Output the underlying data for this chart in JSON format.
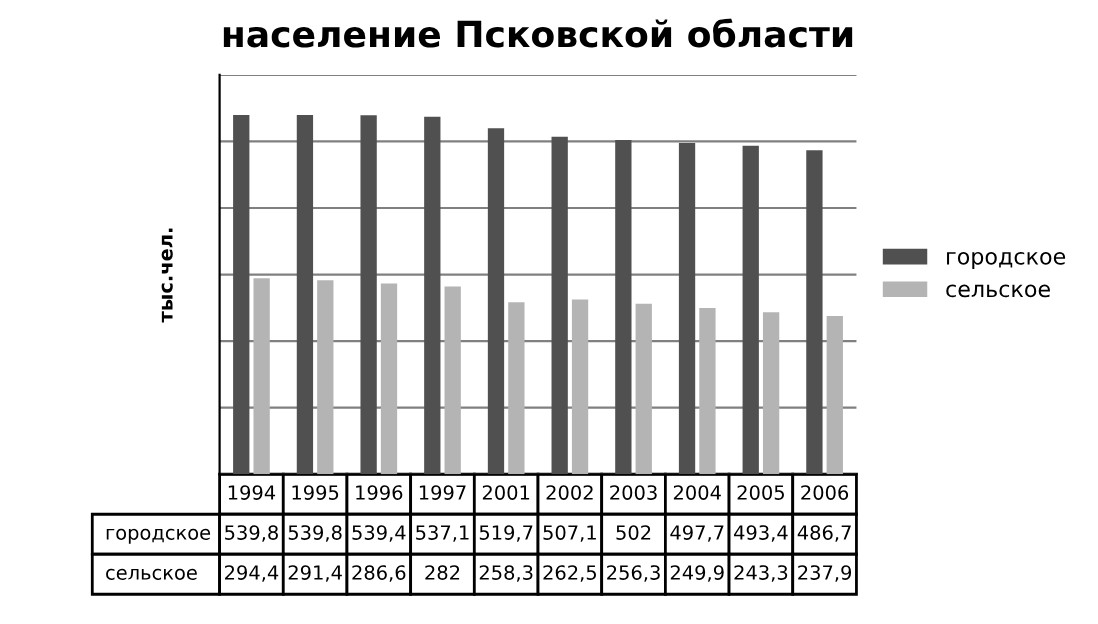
{
  "chart_data": {
    "type": "bar",
    "title": "население Псковской области",
    "ylabel": "тыс.чел.",
    "categories": [
      "1994",
      "1995",
      "1996",
      "1997",
      "2001",
      "2002",
      "2003",
      "2004",
      "2005",
      "2006"
    ],
    "series": [
      {
        "name": "городское",
        "color": "#505050",
        "values": [
          539.8,
          539.8,
          539.4,
          537.1,
          519.7,
          507.1,
          502,
          497.7,
          493.4,
          486.7
        ],
        "value_labels": [
          "539,8",
          "539,8",
          "539,4",
          "537,1",
          "519,7",
          "507,1",
          "502",
          "497,7",
          "493,4",
          "486,7"
        ]
      },
      {
        "name": "сельское",
        "color": "#b4b4b4",
        "values": [
          294.4,
          291.4,
          286.6,
          282,
          258.3,
          262.5,
          256.3,
          249.9,
          243.3,
          237.9
        ],
        "value_labels": [
          "294,4",
          "291,4",
          "286,6",
          "282",
          "258,3",
          "262,5",
          "256,3",
          "249,9",
          "243,3",
          "237,9"
        ]
      }
    ],
    "ylim": [
      0,
      600
    ],
    "yticks": [
      {
        "value": 0,
        "label": null
      },
      {
        "value": 100,
        "label": null
      },
      {
        "value": 200,
        "label": null
      },
      {
        "value": 300,
        "label": null
      },
      {
        "value": 400,
        "label": null
      },
      {
        "value": 500,
        "label": null
      },
      {
        "value": 600,
        "label": null
      }
    ],
    "grid": "y",
    "legend": "right"
  }
}
